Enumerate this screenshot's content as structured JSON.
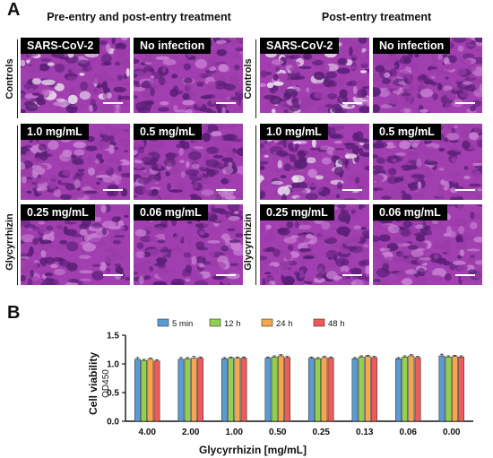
{
  "panel_a": {
    "letter": "A",
    "groups": [
      {
        "title": "Pre-entry and post-entry treatment"
      },
      {
        "title": "Post-entry treatment"
      }
    ],
    "row_labels": {
      "controls": "Controls",
      "glycyrrhizin": "Glycyrrhizin"
    },
    "tiles": [
      "SARS-CoV-2",
      "No infection",
      "1.0 mg/mL",
      "0.5 mg/mL",
      "0.25 mg/mL",
      "0.06 mg/mL"
    ]
  },
  "panel_b": {
    "letter": "B"
  },
  "colors": {
    "5 min": "#5b9bd5",
    "12 h": "#92d050",
    "24 h": "#f4a74f",
    "48 h": "#ef5b5b",
    "stain_dark": "#5a1f77",
    "stain_mid": "#9a3ca8",
    "stain_light": "#c77fd3"
  },
  "chart_data": {
    "type": "bar",
    "ylabel": "Cell viability",
    "ylabel_sub": "OD450",
    "xlabel": "Glycyrrhizin [mg/mL]",
    "categories": [
      "4.00",
      "2.00",
      "1.00",
      "0.50",
      "0.25",
      "0.13",
      "0.06",
      "0.00"
    ],
    "ylim": [
      0,
      1.5
    ],
    "yticks": [
      "0.0",
      "0.5",
      "1.0",
      "1.5"
    ],
    "legend_position": "top",
    "series": [
      {
        "name": "5 min",
        "values": [
          1.08,
          1.08,
          1.09,
          1.1,
          1.1,
          1.09,
          1.09,
          1.14
        ]
      },
      {
        "name": "12 h",
        "values": [
          1.06,
          1.09,
          1.1,
          1.12,
          1.09,
          1.12,
          1.12,
          1.12
        ]
      },
      {
        "name": "24 h",
        "values": [
          1.08,
          1.1,
          1.1,
          1.14,
          1.11,
          1.13,
          1.14,
          1.13
        ]
      },
      {
        "name": "48 h",
        "values": [
          1.05,
          1.1,
          1.1,
          1.11,
          1.1,
          1.11,
          1.11,
          1.12
        ]
      }
    ],
    "errors": [
      [
        0.03,
        0.03,
        0.02,
        0.02,
        0.02,
        0.02,
        0.02,
        0.03
      ],
      [
        0.02,
        0.02,
        0.02,
        0.02,
        0.02,
        0.02,
        0.02,
        0.02
      ],
      [
        0.02,
        0.03,
        0.02,
        0.02,
        0.02,
        0.02,
        0.02,
        0.02
      ],
      [
        0.02,
        0.02,
        0.02,
        0.02,
        0.02,
        0.02,
        0.02,
        0.02
      ]
    ]
  }
}
